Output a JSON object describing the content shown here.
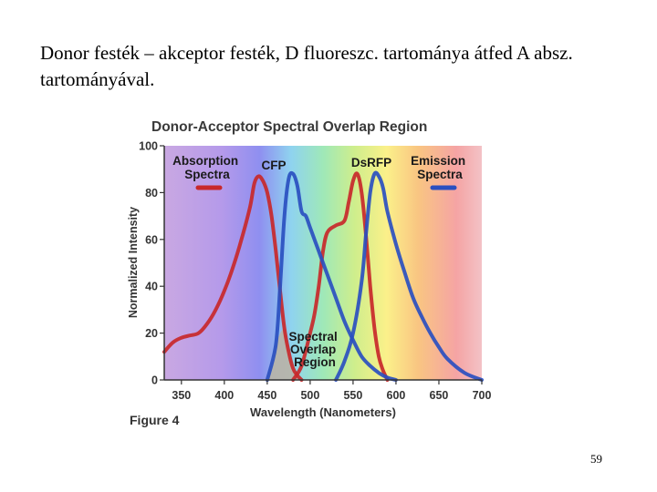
{
  "slide": {
    "text": "Donor festék – akceptor festék, D fluoreszc. tartománya átfed A absz. tartományával.",
    "page_number": "59"
  },
  "chart_data": {
    "type": "line",
    "title": "Donor-Acceptor Spectral Overlap Region",
    "xlabel": "Wavelength (Nanometers)",
    "ylabel": "Normalized Intensity",
    "figure_label": "Figure 4",
    "xlim": [
      330,
      700
    ],
    "ylim": [
      0,
      100
    ],
    "x_ticks": [
      350,
      400,
      450,
      500,
      550,
      600,
      650,
      700
    ],
    "y_ticks": [
      0,
      20,
      40,
      60,
      80,
      100
    ],
    "legend": {
      "absorption": "Absorption Spectra",
      "emission": "Emission Spectra",
      "placement": "top"
    },
    "annotations": {
      "cfp": "CFP",
      "dsrfp": "DsRFP",
      "overlap": "Spectral Overlap Region"
    },
    "colors": {
      "absorption": "#c8282a",
      "emission": "#2a4fc0",
      "overlap_fill": "#b9b4a6"
    },
    "series": [
      {
        "name": "CFP",
        "kind": "absorption",
        "x": [
          330,
          340,
          350,
          360,
          370,
          380,
          390,
          400,
          410,
          420,
          430,
          435,
          440,
          445,
          450,
          455,
          460,
          465,
          470,
          475,
          480,
          485,
          490
        ],
        "y": [
          12,
          16,
          18,
          19,
          20,
          24,
          30,
          38,
          48,
          60,
          74,
          84,
          87,
          85,
          80,
          70,
          55,
          38,
          22,
          12,
          5,
          2,
          0
        ]
      },
      {
        "name": "DsRFP",
        "kind": "absorption",
        "x": [
          480,
          490,
          500,
          505,
          510,
          515,
          520,
          530,
          540,
          545,
          550,
          555,
          560,
          565,
          570,
          575,
          580,
          585,
          590
        ],
        "y": [
          0,
          6,
          20,
          28,
          40,
          55,
          63,
          66,
          68,
          76,
          85,
          88,
          80,
          62,
          40,
          22,
          10,
          4,
          0
        ]
      },
      {
        "name": "CFP",
        "kind": "emission",
        "x": [
          450,
          460,
          465,
          470,
          475,
          480,
          485,
          490,
          495,
          500,
          510,
          520,
          530,
          540,
          550,
          560,
          570,
          580,
          590,
          600
        ],
        "y": [
          0,
          15,
          40,
          70,
          86,
          88,
          83,
          72,
          70,
          65,
          55,
          45,
          35,
          25,
          17,
          10,
          6,
          3,
          1,
          0
        ]
      },
      {
        "name": "DsRFP",
        "kind": "emission",
        "x": [
          530,
          540,
          550,
          560,
          565,
          570,
          575,
          580,
          585,
          590,
          600,
          610,
          620,
          630,
          640,
          650,
          660,
          680,
          700
        ],
        "y": [
          0,
          8,
          20,
          42,
          62,
          80,
          88,
          87,
          82,
          72,
          58,
          46,
          35,
          27,
          20,
          14,
          9,
          3,
          0
        ]
      }
    ],
    "overlap_region": {
      "x": [
        450,
        460,
        470,
        475,
        480,
        485,
        490
      ],
      "y": [
        0,
        15,
        22,
        12,
        5,
        2,
        0
      ]
    }
  }
}
